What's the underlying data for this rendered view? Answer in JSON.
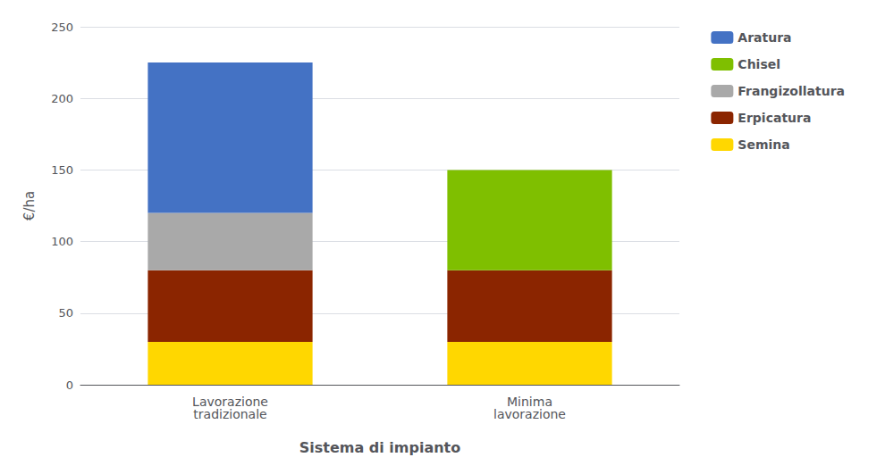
{
  "chart_data": {
    "type": "bar",
    "xlabel": "Sistema di impianto",
    "ylabel": "€/ha",
    "categories": [
      "Lavorazione\ntradizionale",
      "Minima\nlavorazione"
    ],
    "stacked": true,
    "series": [
      {
        "name": "Semina",
        "color": "#FFD700",
        "values": [
          30,
          30
        ]
      },
      {
        "name": "Erpicatura",
        "color": "#8B2500",
        "values": [
          50,
          50
        ]
      },
      {
        "name": "Frangizollatura",
        "color": "#A9A9A9",
        "values": [
          40,
          0
        ]
      },
      {
        "name": "Chisel",
        "color": "#7FBF00",
        "values": [
          0,
          70
        ]
      },
      {
        "name": "Aratura",
        "color": "#4472C4",
        "values": [
          105,
          0
        ]
      }
    ],
    "ylim": [
      0,
      250
    ],
    "yticks": [
      0,
      50,
      100,
      150,
      200,
      250
    ],
    "grid": true,
    "legend": "upper right"
  }
}
